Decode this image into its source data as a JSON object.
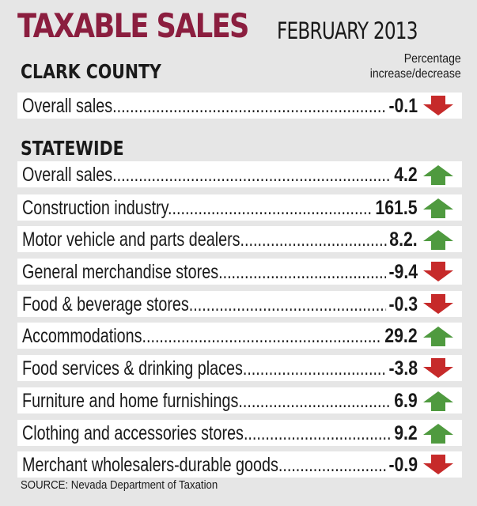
{
  "title": "TAXABLE SALES",
  "subtitle": "FEBRUARY 2013",
  "column_header": [
    "Percentage",
    "increase/decrease"
  ],
  "source": "SOURCE: Nevada Department of Taxation",
  "colors": {
    "title": "#8b1e3f",
    "up": "#4f9a3f",
    "down": "#c62a2a"
  },
  "chart_data": {
    "type": "table",
    "title": "TAXABLE SALES FEBRUARY 2013",
    "value_label": "Percentage increase/decrease",
    "sections": [
      {
        "name": "CLARK COUNTY",
        "rows": [
          {
            "label": "Overall sales",
            "value": "-0.1",
            "direction": "down"
          }
        ]
      },
      {
        "name": "STATEWIDE",
        "rows": [
          {
            "label": "Overall sales",
            "value": "4.2",
            "direction": "up"
          },
          {
            "label": "Construction industry",
            "value": "161.5",
            "direction": "up"
          },
          {
            "label": "Motor vehicle and parts dealers",
            "value": "8.2.",
            "direction": "up"
          },
          {
            "label": "General merchandise stores",
            "value": "-9.4",
            "direction": "down"
          },
          {
            "label": "Food & beverage stores",
            "value": "-0.3",
            "direction": "down"
          },
          {
            "label": "Accommodations",
            "value": "29.2",
            "direction": "up"
          },
          {
            "label": "Food services & drinking places",
            "value": "-3.8",
            "direction": "down"
          },
          {
            "label": "Furniture and home furnishings",
            "value": "6.9",
            "direction": "up"
          },
          {
            "label": "Clothing and accessories stores",
            "value": "9.2",
            "direction": "up"
          },
          {
            "label": "Merchant wholesalers-durable goods",
            "value": "-0.9",
            "direction": "down"
          }
        ]
      }
    ]
  }
}
